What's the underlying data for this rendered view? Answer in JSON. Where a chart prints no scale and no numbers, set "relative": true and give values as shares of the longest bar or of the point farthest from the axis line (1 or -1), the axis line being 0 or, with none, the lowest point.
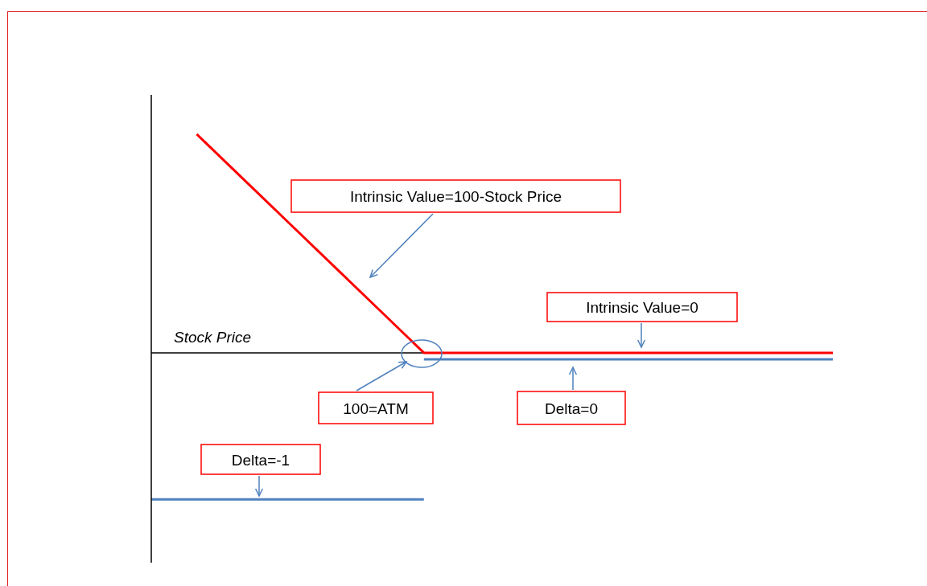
{
  "chart_data": {
    "type": "line",
    "relative": true,
    "xlabel": "Stock Price",
    "marker": "none",
    "line_style": "solid",
    "categories": [
      null,
      null,
      null,
      null,
      null,
      null,
      null,
      null,
      null,
      null,
      null,
      null,
      null,
      null,
      null,
      null
    ],
    "series": [
      {
        "color": "#ff0000",
        "values": [
          null,
          1,
          0.8,
          0.6,
          0.4,
          0.2,
          0,
          0,
          0,
          0,
          0,
          0,
          0,
          0,
          0,
          0
        ]
      },
      {
        "color": "#4f81bd",
        "values": [
          -0.67,
          -0.67,
          -0.67,
          -0.67,
          -0.67,
          -0.67,
          -0.67,
          null,
          null,
          null,
          null,
          null,
          null,
          null,
          null,
          null
        ]
      },
      {
        "color": "#4f81bd",
        "values": [
          null,
          null,
          null,
          null,
          null,
          null,
          -0.03,
          -0.03,
          -0.03,
          -0.03,
          -0.03,
          -0.03,
          -0.03,
          -0.03,
          -0.03,
          -0.03
        ]
      }
    ],
    "annotations": [
      "Intrinsic Value=100-Stock Price",
      "Intrinsic Value=0",
      "100=ATM",
      "Delta=0",
      "Delta=-1"
    ]
  }
}
